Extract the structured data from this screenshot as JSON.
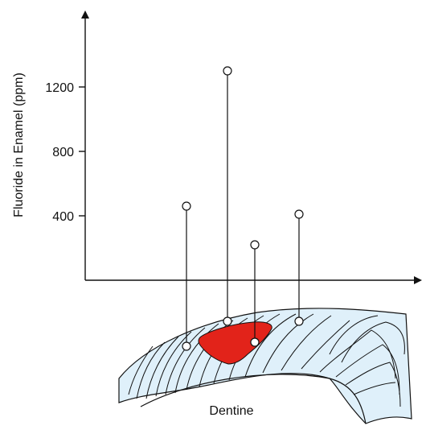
{
  "axis": {
    "y_title": "Fluoride in Enamel (ppm)",
    "ticks": [
      {
        "label": "400",
        "value": 400
      },
      {
        "label": "800",
        "value": 800
      },
      {
        "label": "1200",
        "value": 1200
      }
    ],
    "y_range": [
      0,
      1500
    ]
  },
  "tooth": {
    "label": "Dentine",
    "enamel_color": "#dff0fa",
    "lesion_color": "#e2231a",
    "line_color": "#111111"
  },
  "chart_data": {
    "type": "scatter",
    "ylabel": "Fluoride in Enamel (ppm)",
    "ylim": [
      0,
      1500
    ],
    "grid": false,
    "points": [
      {
        "site": 1,
        "value": 460
      },
      {
        "site": 2,
        "value": 1300
      },
      {
        "site": 3,
        "value": 220
      },
      {
        "site": 4,
        "value": 410
      }
    ]
  }
}
